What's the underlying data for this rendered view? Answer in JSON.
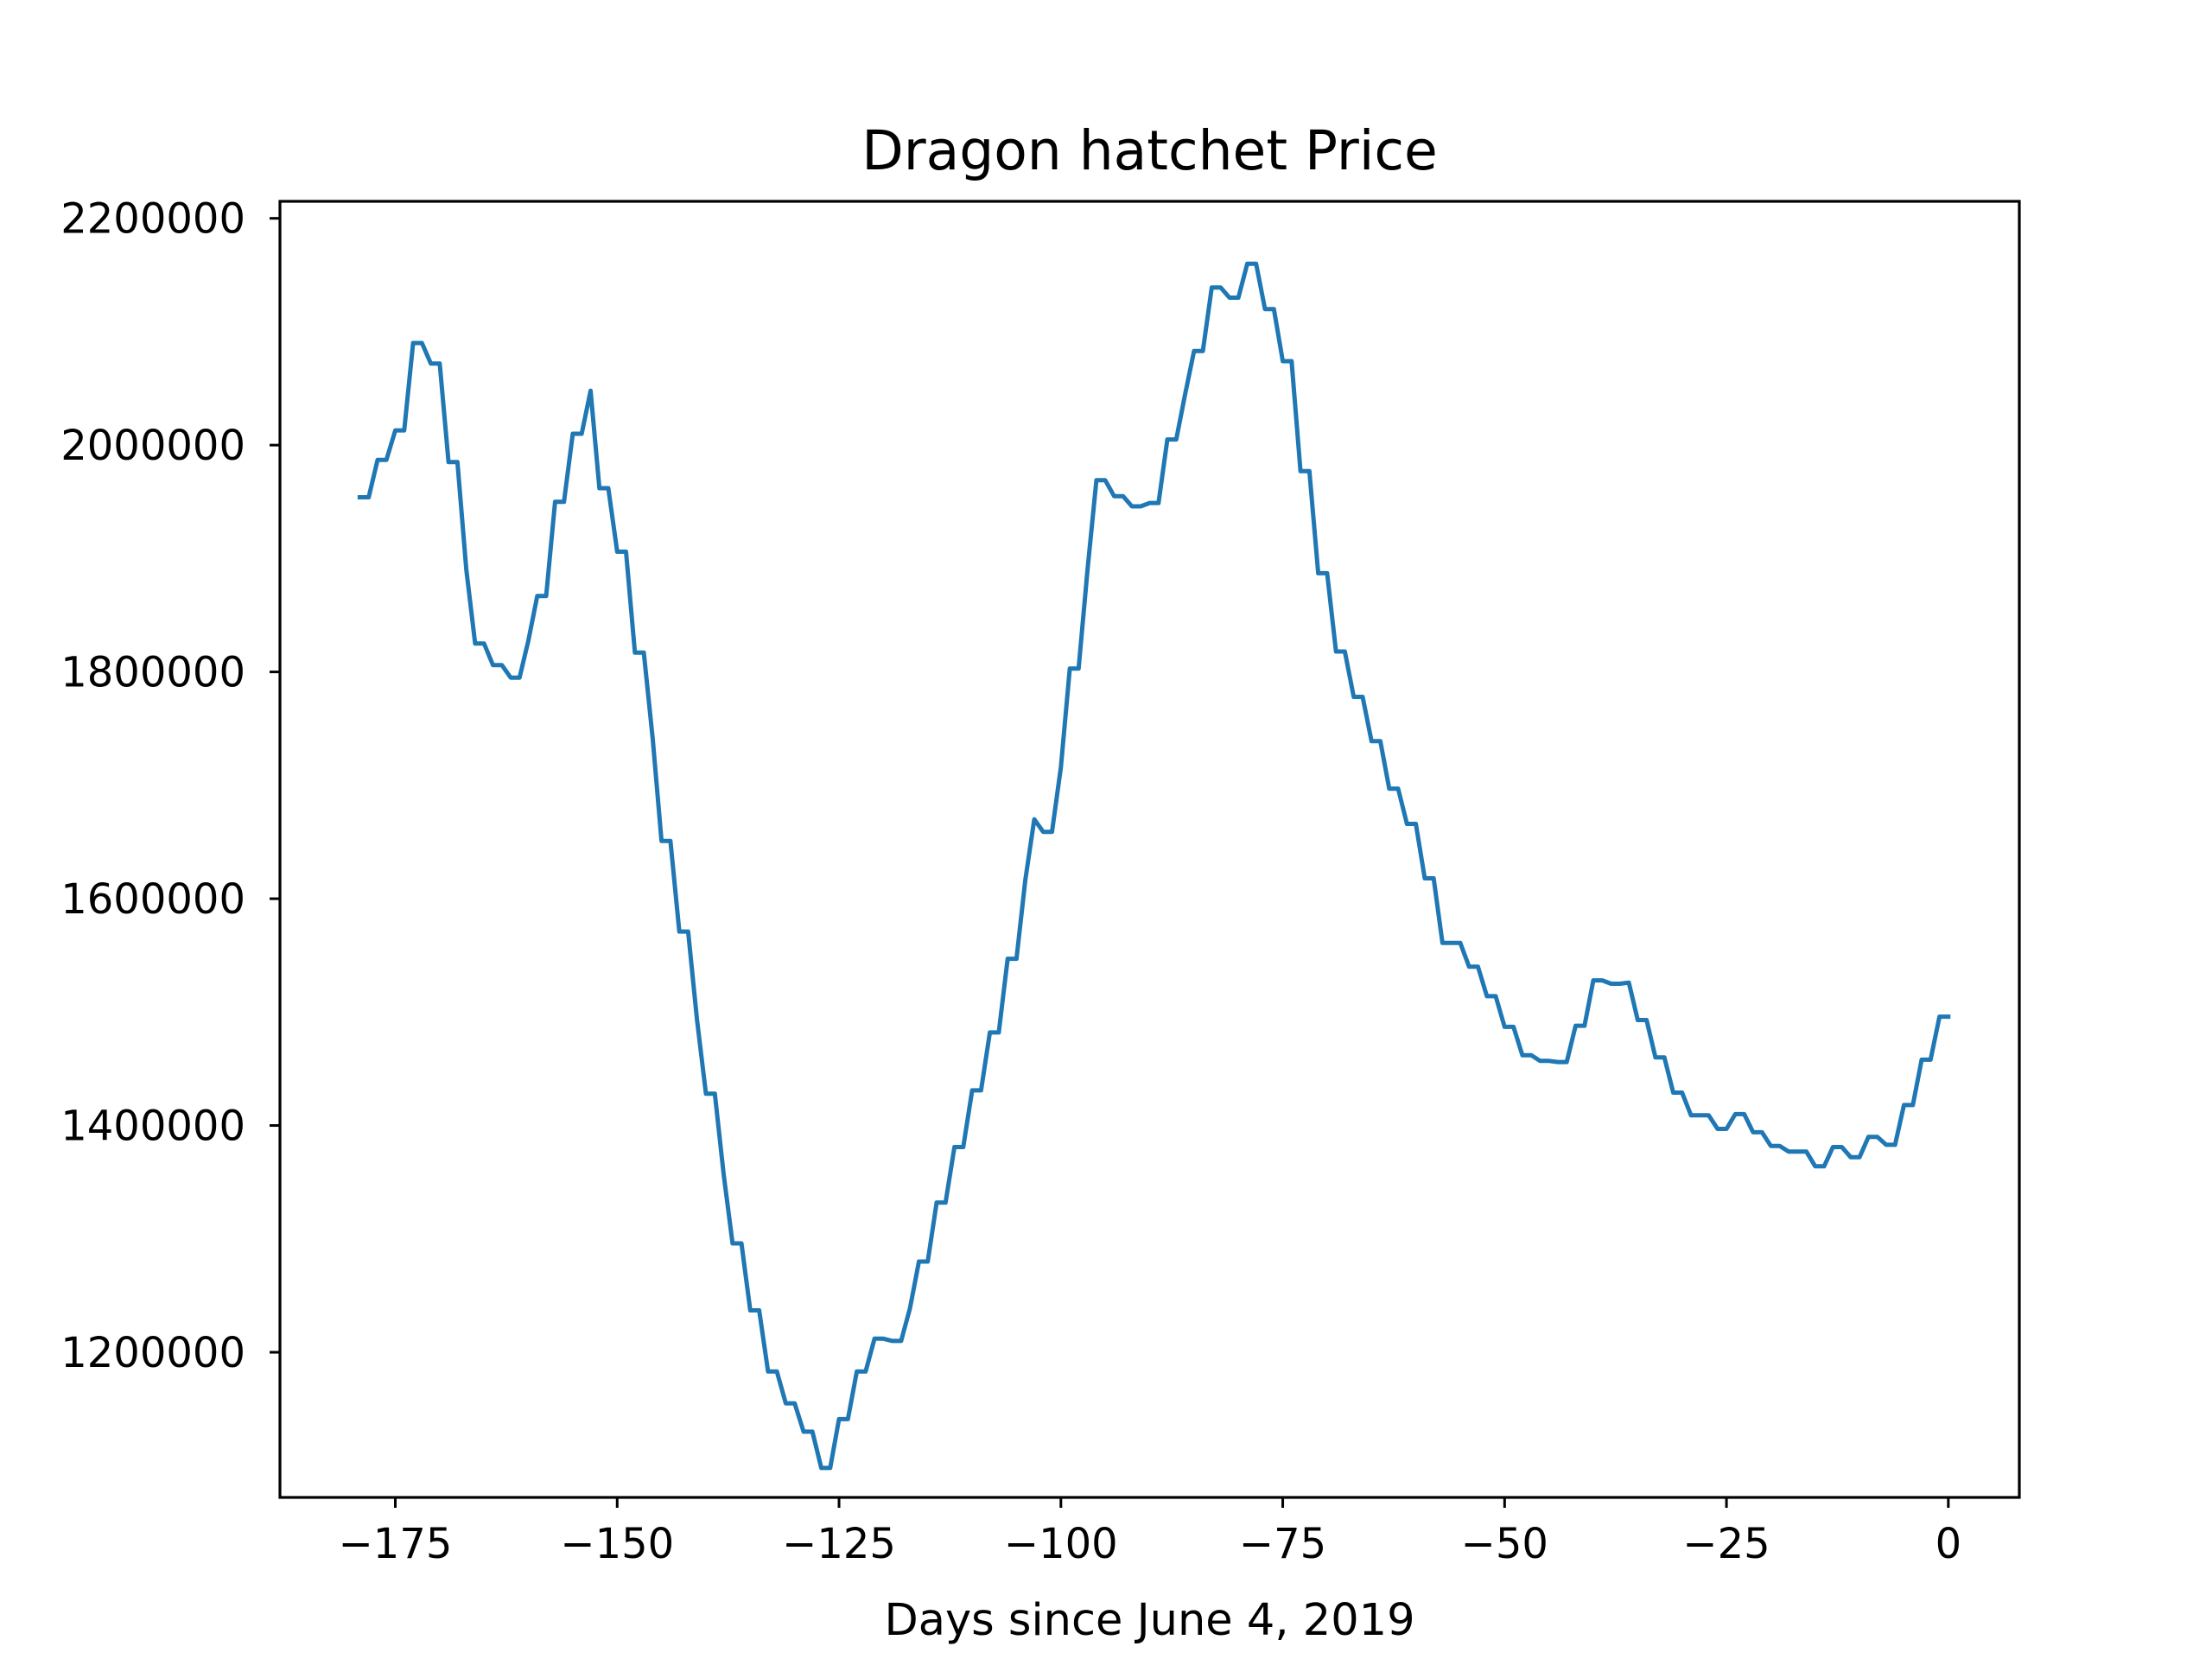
{
  "chart_data": {
    "type": "line",
    "title": "Dragon hatchet Price",
    "xlabel": "Days since June 4, 2019",
    "ylabel": "",
    "xlim": [
      -188,
      8
    ],
    "ylim": [
      1072000,
      2215000
    ],
    "x_ticks": [
      -175,
      -150,
      -125,
      -100,
      -75,
      -50,
      -25,
      0
    ],
    "x_tick_labels": [
      "−175",
      "−150",
      "−125",
      "−100",
      "−75",
      "−50",
      "−25",
      "0"
    ],
    "y_ticks": [
      1200000,
      1400000,
      1600000,
      1800000,
      2000000,
      2200000
    ],
    "y_tick_labels": [
      "1200000",
      "1400000",
      "1600000",
      "1800000",
      "2000000",
      "2200000"
    ],
    "grid": false,
    "legend": false,
    "color": "#1f77b4",
    "series": [
      {
        "x": [
          -179,
          -178,
          -177,
          -176,
          -175,
          -174,
          -173,
          -172,
          -171,
          -170,
          -169,
          -168,
          -167,
          -166,
          -165,
          -164,
          -163,
          -162,
          -161,
          -160,
          -159,
          -158,
          -157,
          -156,
          -155,
          -154,
          -153,
          -152,
          -151,
          -150,
          -149,
          -148,
          -147,
          -146,
          -145,
          -144,
          -143,
          -142,
          -141,
          -140,
          -139,
          -138,
          -137,
          -136,
          -135,
          -134,
          -133,
          -132,
          -131,
          -130,
          -129,
          -128,
          -127,
          -126,
          -125,
          -124,
          -123,
          -122,
          -121,
          -120,
          -119,
          -118,
          -117,
          -116,
          -115,
          -114,
          -113,
          -112,
          -111,
          -110,
          -109,
          -108,
          -107,
          -106,
          -105,
          -104,
          -103,
          -102,
          -101,
          -100,
          -99,
          -98,
          -97,
          -96,
          -95,
          -94,
          -93,
          -92,
          -91,
          -90,
          -89,
          -88,
          -87,
          -86,
          -85,
          -84,
          -83,
          -82,
          -81,
          -80,
          -79,
          -78,
          -77,
          -76,
          -75,
          -74,
          -73,
          -72,
          -71,
          -70,
          -69,
          -68,
          -67,
          -66,
          -65,
          -64,
          -63,
          -62,
          -61,
          -60,
          -59,
          -58,
          -57,
          -56,
          -55,
          -54,
          -53,
          -52,
          -51,
          -50,
          -49,
          -48,
          -47,
          -46,
          -45,
          -44,
          -43,
          -42,
          -41,
          -40,
          -39,
          -38,
          -37,
          -36,
          -35,
          -34,
          -33,
          -32,
          -31,
          -30,
          -29,
          -28,
          -27,
          -26,
          -25,
          -24,
          -23,
          -22,
          -21,
          -20,
          -19,
          -18,
          -17,
          -16,
          -15,
          -14,
          -13,
          -12,
          -11,
          -10,
          -9,
          -8,
          -7,
          -6,
          -5,
          -4,
          -3,
          -2,
          -1,
          0
        ],
        "values": [
          1954000,
          1954000,
          1987000,
          1987000,
          2013000,
          2013000,
          2090000,
          2090000,
          2072000,
          2072000,
          1985000,
          1985000,
          1890000,
          1825000,
          1825000,
          1806000,
          1806000,
          1795000,
          1795000,
          1828000,
          1867000,
          1867000,
          1950000,
          1950000,
          2010000,
          2010000,
          2048000,
          1962000,
          1962000,
          1906000,
          1906000,
          1817000,
          1817000,
          1741000,
          1651000,
          1651000,
          1571000,
          1571000,
          1493000,
          1428000,
          1428000,
          1357000,
          1296000,
          1296000,
          1237000,
          1237000,
          1183000,
          1183000,
          1155000,
          1155000,
          1130000,
          1130000,
          1098000,
          1098000,
          1141000,
          1141000,
          1183000,
          1183000,
          1212000,
          1212000,
          1210000,
          1210000,
          1239000,
          1280000,
          1280000,
          1332000,
          1332000,
          1381000,
          1381000,
          1431000,
          1431000,
          1482000,
          1482000,
          1547000,
          1547000,
          1617000,
          1670000,
          1659000,
          1659000,
          1716000,
          1803000,
          1803000,
          1890000,
          1969000,
          1969000,
          1955000,
          1955000,
          1946000,
          1946000,
          1949000,
          1949000,
          2005000,
          2005000,
          2045000,
          2083000,
          2083000,
          2139000,
          2139000,
          2130000,
          2130000,
          2160000,
          2160000,
          2120000,
          2120000,
          2074000,
          2074000,
          1977000,
          1977000,
          1887000,
          1887000,
          1818000,
          1818000,
          1778000,
          1778000,
          1739000,
          1739000,
          1697000,
          1697000,
          1666000,
          1666000,
          1618000,
          1618000,
          1561000,
          1561000,
          1561000,
          1540000,
          1540000,
          1514000,
          1514000,
          1487000,
          1487000,
          1462000,
          1462000,
          1457000,
          1457000,
          1456000,
          1456000,
          1488000,
          1488000,
          1528000,
          1528000,
          1525000,
          1525000,
          1526000,
          1493000,
          1493000,
          1460000,
          1460000,
          1429000,
          1429000,
          1409000,
          1409000,
          1409000,
          1397000,
          1397000,
          1410000,
          1410000,
          1394000,
          1394000,
          1382000,
          1382000,
          1377000,
          1377000,
          1377000,
          1364000,
          1364000,
          1381000,
          1381000,
          1372000,
          1372000,
          1390000,
          1390000,
          1383000,
          1383000,
          1418000,
          1418000,
          1458000,
          1458000,
          1496000,
          1496000
        ]
      }
    ]
  }
}
